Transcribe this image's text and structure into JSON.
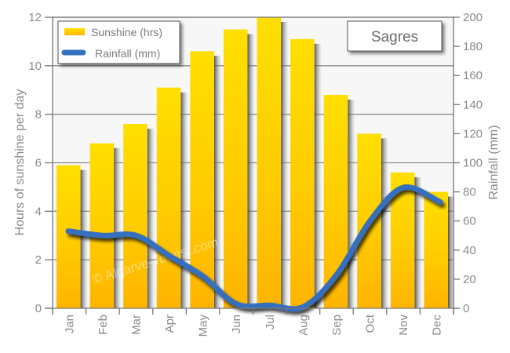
{
  "chart_data": {
    "type": "bar+line",
    "title": "Sagres",
    "categories": [
      "Jan",
      "Feb",
      "Mar",
      "Apr",
      "May",
      "Jun",
      "Jul",
      "Aug",
      "Sep",
      "Oct",
      "Nov",
      "Dec"
    ],
    "series": [
      {
        "name": "Sunshine (hrs)",
        "type": "bar",
        "axis": "left",
        "color": "#FFC400",
        "values": [
          5.9,
          6.8,
          7.6,
          9.1,
          10.6,
          11.5,
          12.0,
          11.1,
          8.8,
          7.2,
          5.6,
          4.8
        ]
      },
      {
        "name": "Rainfall (mm)",
        "type": "line",
        "axis": "right",
        "color": "#3470C0",
        "values": [
          53,
          50,
          50,
          36,
          22,
          3,
          2,
          1,
          23,
          60,
          83,
          73
        ]
      }
    ],
    "ylabel": "Hours of sunshine per day",
    "y2label": "Rainfall  (mm)",
    "ylim": [
      0,
      12
    ],
    "y2lim": [
      0,
      200
    ],
    "yticks": [
      0,
      2,
      4,
      6,
      8,
      10,
      12
    ],
    "y2ticks": [
      0,
      20,
      40,
      60,
      80,
      100,
      120,
      140,
      160,
      180,
      200
    ],
    "grid": true,
    "legend_position": "top-left",
    "watermark": "© Algarve-Tourist.com"
  },
  "legend": {
    "sunshine_label": "Sunshine (hrs)",
    "rainfall_label": "Rainfall (mm)"
  },
  "title_box": {
    "label": "Sagres"
  },
  "axes": {
    "left_title": "Hours of sunshine per day",
    "right_title": "Rainfall  (mm)"
  },
  "colors": {
    "plot_bg": "#F7F7F7",
    "grid": "#8C8C8C",
    "bar_top": "#FFDF00",
    "bar_bottom": "#FFB400",
    "line": "#3470C0",
    "text": "#8A8A8A"
  }
}
